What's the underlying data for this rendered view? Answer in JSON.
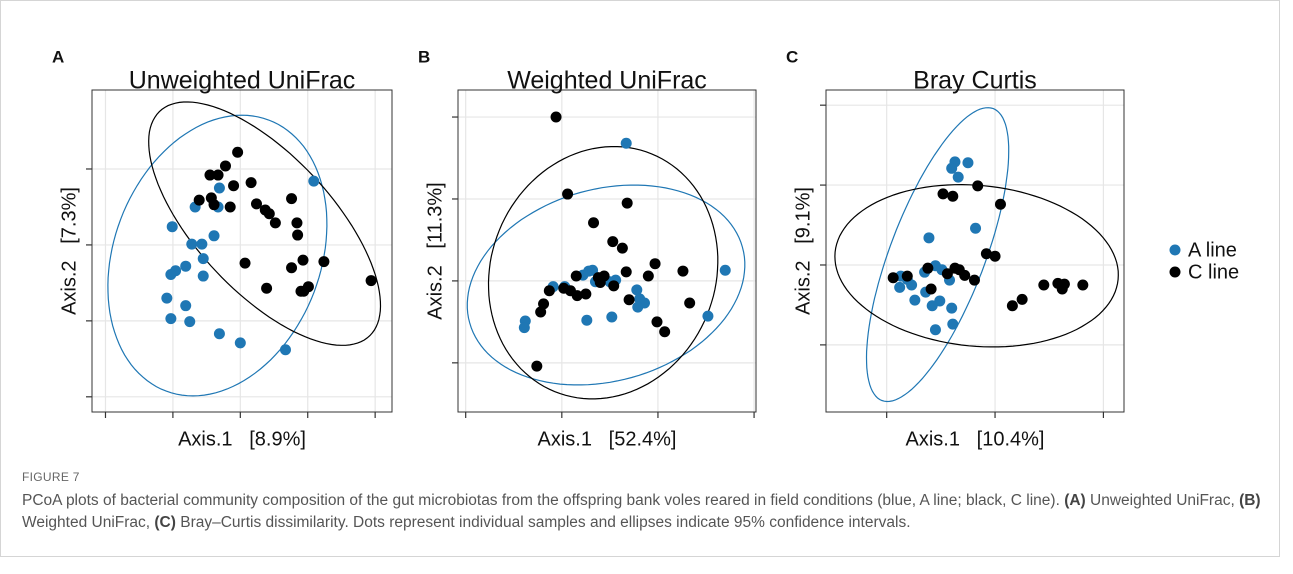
{
  "chart_data": [
    {
      "type": "scatter",
      "panel_label": "A",
      "title": "Unweighted UniFrac",
      "x_label": "Axis.1   [8.9%]",
      "y_label": "Axis.2   [7.3%]",
      "xlim": [
        -2.2,
        2.25
      ],
      "ylim": [
        -2.2,
        2.04
      ],
      "xticks": [
        -2,
        -1,
        0,
        1,
        2
      ],
      "yticks": [
        -2,
        -1,
        0,
        1
      ],
      "grid": true,
      "series": [
        {
          "color": "#1f77b4",
          "ellipse": {
            "cx": -0.34,
            "cy": -0.14,
            "rx": 1.95,
            "ry": 1.5,
            "angle": 60
          },
          "x": [
            1.09,
            -1.01,
            -0.67,
            -0.31,
            -0.33,
            -0.39,
            -0.72,
            -0.57,
            -0.55,
            -0.81,
            -0.96,
            -1.03,
            -0.55,
            -1.09,
            -0.81,
            -1.03,
            -0.75,
            -0.31,
            0,
            0.67
          ],
          "values": [
            0.84,
            0.24,
            0.5,
            0.75,
            0.5,
            0.12,
            0.01,
            0.01,
            -0.18,
            -0.28,
            -0.34,
            -0.39,
            -0.41,
            -0.7,
            -0.8,
            -0.97,
            -1.01,
            -1.17,
            -1.29,
            -1.38
          ]
        },
        {
          "color": "#000000",
          "ellipse": {
            "cx": 0.36,
            "cy": 0.28,
            "rx": 2.15,
            "ry": 0.95,
            "angle": -42
          },
          "x": [
            -0.04,
            -0.22,
            -0.45,
            -0.33,
            -0.1,
            0.16,
            -0.43,
            -0.61,
            -0.39,
            -0.15,
            0.24,
            0.37,
            0.43,
            0.76,
            0.52,
            0.84,
            0.85,
            0.07,
            0.93,
            1.24,
            0.76,
            0.39,
            1.01,
            0.9,
            0.94,
            1.94
          ],
          "values": [
            1.22,
            1.04,
            0.92,
            0.92,
            0.78,
            0.82,
            0.62,
            0.59,
            0.53,
            0.5,
            0.54,
            0.46,
            0.41,
            0.61,
            0.29,
            0.29,
            0.13,
            -0.24,
            -0.2,
            -0.22,
            -0.3,
            -0.57,
            -0.55,
            -0.61,
            -0.61,
            -0.47
          ]
        }
      ]
    },
    {
      "type": "scatter",
      "panel_label": "B",
      "title": "Weighted UniFrac",
      "x_label": "Axis.1   [52.4%]",
      "y_label": "Axis.2   [11.3%]",
      "xlim": [
        -1.08,
        2.02
      ],
      "ylim": [
        -1.6,
        2.33
      ],
      "xticks": [
        -1,
        0,
        1,
        2
      ],
      "yticks": [
        -1,
        0,
        1,
        2
      ],
      "grid": true,
      "series": [
        {
          "color": "#1f77b4",
          "ellipse": {
            "cx": 0.46,
            "cy": -0.05,
            "rx": 1.5,
            "ry": 1.15,
            "angle": 25
          },
          "x": [
            0.67,
            1.7,
            -0.38,
            -0.39,
            -0.09,
            0.03,
            0.22,
            0.28,
            0.32,
            0.35,
            0.5,
            0.56,
            0.78,
            0.81,
            0.86,
            0.79,
            0.52,
            0.26,
            1.52
          ],
          "values": [
            1.68,
            0.13,
            -0.49,
            -0.57,
            -0.07,
            -0.07,
            0.07,
            0.12,
            0.13,
            -0.01,
            -0.01,
            0.01,
            -0.11,
            -0.22,
            -0.27,
            -0.32,
            -0.44,
            -0.48,
            -0.43
          ]
        },
        {
          "color": "#000000",
          "ellipse": {
            "cx": 0.43,
            "cy": 0.1,
            "rx": 1.55,
            "ry": 1.18,
            "angle": 80
          },
          "x": [
            -0.06,
            0.06,
            0.33,
            0.68,
            0.53,
            0.63,
            0.97,
            1.26,
            0.67,
            0.9,
            0.44,
            0.38,
            0.15,
            0.02,
            0.09,
            0.16,
            0.25,
            -0.13,
            -0.19,
            -0.22,
            0.4,
            0.54,
            0.7,
            0.99,
            1.07,
            1.33,
            -0.26
          ],
          "values": [
            2.0,
            1.06,
            0.71,
            0.95,
            0.48,
            0.4,
            0.21,
            0.12,
            0.11,
            0.06,
            0.06,
            0.04,
            0.06,
            -0.09,
            -0.12,
            -0.18,
            -0.16,
            -0.12,
            -0.28,
            -0.38,
            -0.02,
            -0.06,
            -0.23,
            -0.5,
            -0.62,
            -0.27,
            -1.04
          ]
        }
      ]
    },
    {
      "type": "scatter",
      "panel_label": "C",
      "title": "Bray Curtis",
      "x_label": "Axis.1   [10.4%]",
      "y_label": "Axis.2   [9.1%]",
      "xlim": [
        -1.56,
        1.19
      ],
      "ylim": [
        -1.84,
        2.19
      ],
      "xticks": [
        -1,
        0,
        1
      ],
      "yticks": [
        -1,
        0,
        1,
        2
      ],
      "grid": true,
      "series": [
        {
          "name": "A line",
          "color": "#1f77b4",
          "ellipse": {
            "cx": -0.53,
            "cy": 0.13,
            "rx": 1.9,
            "ry": 0.45,
            "angle": 75
          },
          "x": [
            -0.37,
            -0.4,
            -0.25,
            -0.34,
            -0.18,
            -0.61,
            -0.55,
            -0.65,
            -0.49,
            -0.87,
            -0.81,
            -0.88,
            -0.77,
            -0.42,
            -0.64,
            -0.74,
            -0.51,
            -0.58,
            -0.4,
            -0.39,
            -0.55
          ],
          "values": [
            1.29,
            1.21,
            1.28,
            1.1,
            0.46,
            0.34,
            -0.01,
            -0.09,
            -0.06,
            -0.14,
            -0.18,
            -0.28,
            -0.25,
            -0.19,
            -0.34,
            -0.44,
            -0.45,
            -0.51,
            -0.54,
            -0.74,
            -0.81
          ]
        },
        {
          "name": "C line",
          "color": "#000000",
          "ellipse": {
            "cx": -0.17,
            "cy": -0.01,
            "rx": 1.32,
            "ry": 1.0,
            "angle": -12
          },
          "x": [
            -0.48,
            -0.39,
            -0.16,
            0.05,
            -0.08,
            0,
            -0.94,
            -0.81,
            -0.62,
            -0.44,
            -0.37,
            -0.33,
            -0.28,
            -0.19,
            -0.59,
            0.16,
            0.25,
            0.45,
            0.58,
            0.64,
            0.62,
            0.81
          ],
          "values": [
            0.89,
            0.86,
            0.99,
            0.76,
            0.14,
            0.11,
            -0.16,
            -0.14,
            -0.04,
            -0.11,
            -0.04,
            -0.06,
            -0.13,
            -0.19,
            -0.3,
            -0.51,
            -0.43,
            -0.25,
            -0.23,
            -0.24,
            -0.3,
            -0.25
          ]
        }
      ]
    }
  ],
  "caption_label": "FIGURE 7",
  "caption": [
    {
      "text": "PCoA plots of bacterial community composition of the gut microbiotas from the offspring bank voles reared in field conditions (blue, A line; black, C line). ",
      "bold": false
    },
    {
      "text": "(A)",
      "bold": true
    },
    {
      "text": " Unweighted UniFrac, ",
      "bold": false
    },
    {
      "text": "(B)",
      "bold": true
    },
    {
      "text": " Weighted UniFrac, ",
      "bold": false
    },
    {
      "text": "(C)",
      "bold": true
    },
    {
      "text": " Bray–Curtis dissimilarity. Dots represent individual samples and ellipses indicate 95% confidence intervals.",
      "bold": false
    }
  ]
}
